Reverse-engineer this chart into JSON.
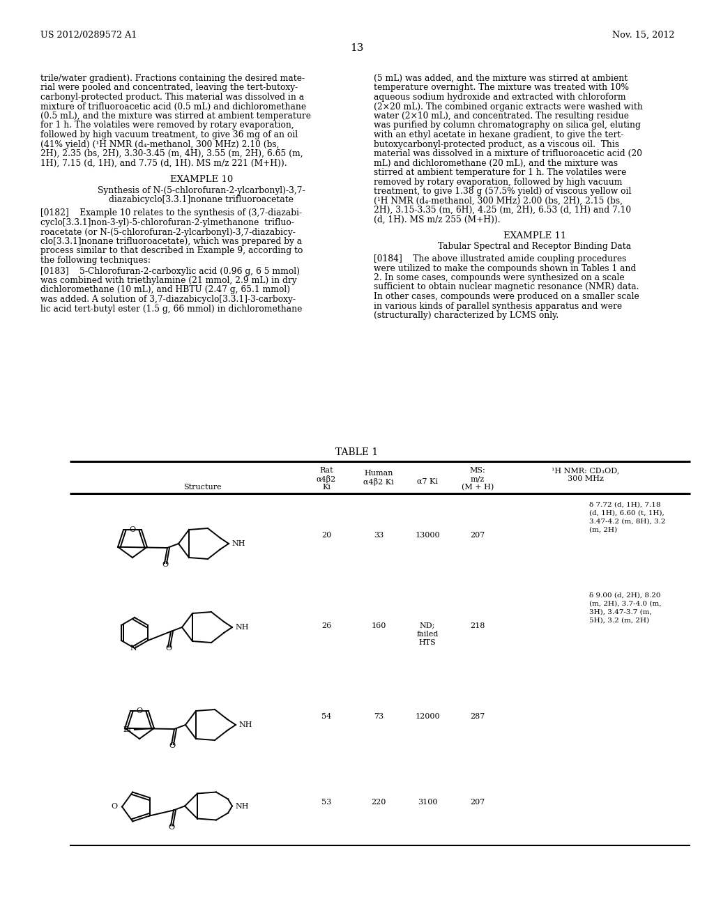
{
  "page_header_left": "US 2012/0289572 A1",
  "page_header_right": "Nov. 15, 2012",
  "page_number": "13",
  "left_col_text": [
    "trile/water gradient). Fractions containing the desired mate-",
    "rial were pooled and concentrated, leaving the tert-butoxy-",
    "carbonyl-protected product. This material was dissolved in a",
    "mixture of trifluoroacetic acid (0.5 mL) and dichloromethane",
    "(0.5 mL), and the mixture was stirred at ambient temperature",
    "for 1 h. The volatiles were removed by rotary evaporation,",
    "followed by high vacuum treatment, to give 36 mg of an oil",
    "(41% yield) (¹H NMR (d₄-methanol, 300 MHz) 2.10 (bs,",
    "2H), 2.35 (bs, 2H), 3.30-3.45 (m, 4H), 3.55 (m, 2H), 6.65 (m,",
    "1H), 7.15 (d, 1H), and 7.75 (d, 1H). MS m/z 221 (M+H))."
  ],
  "left_col_example": "EXAMPLE 10",
  "left_col_example_title": [
    "Synthesis of N-(5-chlorofuran-2-ylcarbonyl)-3,7-",
    "diazabicyclo[3.3.1]nonane trifluoroacetate"
  ],
  "left_col_para_0182_lines": [
    "[0182]    Example 10 relates to the synthesis of (3,7-diazabi-",
    "cyclo[3.3.1]non-3-yl)-5-chlorofuran-2-ylmethanone  trifluo-",
    "roacetate (or N-(5-chlorofuran-2-ylcarbonyl)-3,7-diazabicy-",
    "clo[3.3.1]nonane trifluoroacetate), which was prepared by a",
    "process similar to that described in Example 9, according to",
    "the following techniques:"
  ],
  "left_col_para_0183_lines": [
    "[0183]    5-Chlorofuran-2-carboxylic acid (0.96 g, 6 5 mmol)",
    "was combined with triethylamine (21 mmol, 2.9 mL) in dry",
    "dichloromethane (10 mL), and HBTU (2.47 g, 65.1 mmol)",
    "was added. A solution of 3,7-diazabicyclo[3.3.1]-3-carboxy-",
    "lic acid tert-butyl ester (1.5 g, 66 mmol) in dichloromethane"
  ],
  "right_col_text": [
    "(5 mL) was added, and the mixture was stirred at ambient",
    "temperature overnight. The mixture was treated with 10%",
    "aqueous sodium hydroxide and extracted with chloroform",
    "(2×20 mL). The combined organic extracts were washed with",
    "water (2×10 mL), and concentrated. The resulting residue",
    "was purified by column chromatography on silica gel, eluting",
    "with an ethyl acetate in hexane gradient, to give the tert-",
    "butoxycarbonyl-protected product, as a viscous oil.  This",
    "material was dissolved in a mixture of trifluoroacetic acid (20",
    "mL) and dichloromethane (20 mL), and the mixture was",
    "stirred at ambient temperature for 1 h. The volatiles were",
    "removed by rotary evaporation, followed by high vacuum",
    "treatment, to give 1.38 g (57.5% yield) of viscous yellow oil",
    "(¹H NMR (d₄-methanol, 300 MHz) 2.00 (bs, 2H), 2.15 (bs,",
    "2H), 3.15-3.35 (m, 6H), 4.25 (m, 2H), 6.53 (d, 1H) and 7.10",
    "(d, 1H). MS m/z 255 (M+H))."
  ],
  "right_col_example": "EXAMPLE 11",
  "right_col_example_title": "Tabular Spectral and Receptor Binding Data",
  "right_col_para_0184_lines": [
    "[0184]    The above illustrated amide coupling procedures",
    "were utilized to make the compounds shown in Tables 1 and",
    "2. In some cases, compounds were synthesized on a scale",
    "sufficient to obtain nuclear magnetic resonance (NMR) data.",
    "In other cases, compounds were produced on a smaller scale",
    "in various kinds of parallel synthesis apparatus and were",
    "(structurally) characterized by LCMS only."
  ],
  "table_title": "TABLE 1",
  "table_rows": [
    {
      "rat_a4b2_ki": "20",
      "human_a4b2_ki": "33",
      "a7_ki": "13000",
      "ms_mz": "207",
      "nmr": "δ 7.72 (d, 1H), 7.18\n(d, 1H), 6.60 (t, 1H),\n3.47-4.2 (m, 8H), 3.2\n(m, 2H)"
    },
    {
      "rat_a4b2_ki": "26",
      "human_a4b2_ki": "160",
      "a7_ki": "ND;\nfailed\nHTS",
      "ms_mz": "218",
      "nmr": "δ 9.00 (d, 2H), 8.20\n(m, 2H), 3.7-4.0 (m,\n3H), 3.47-3.7 (m,\n5H), 3.2 (m, 2H)"
    },
    {
      "rat_a4b2_ki": "54",
      "human_a4b2_ki": "73",
      "a7_ki": "12000",
      "ms_mz": "287",
      "nmr": ""
    },
    {
      "rat_a4b2_ki": "53",
      "human_a4b2_ki": "220",
      "a7_ki": "3100",
      "ms_mz": "207",
      "nmr": ""
    }
  ],
  "bg_color": "#ffffff",
  "text_color": "#000000"
}
